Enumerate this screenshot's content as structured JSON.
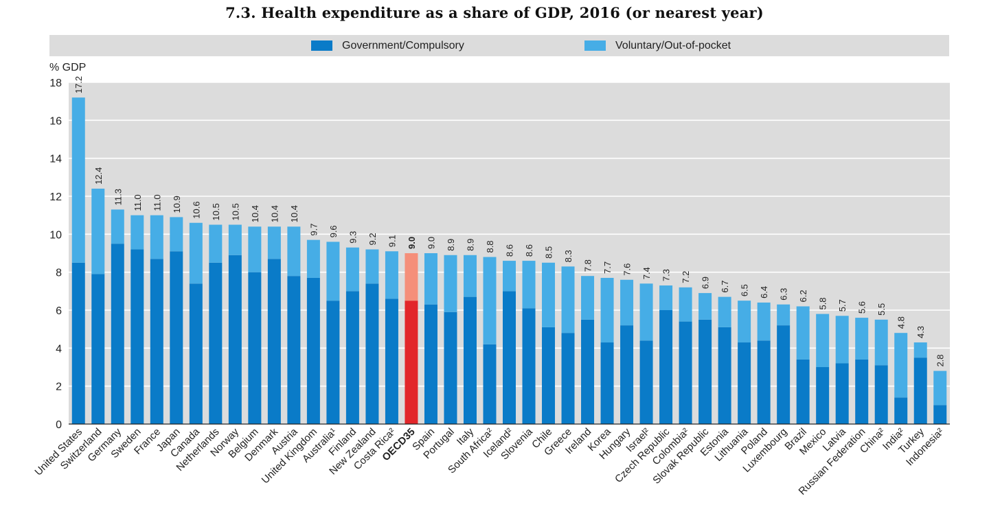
{
  "title": "7.3. Health expenditure as a share of GDP, 2016 (or nearest year)",
  "colors": {
    "gov": "#0a7bc8",
    "vol": "#46ade6",
    "gov_hl": "#e2262a",
    "vol_hl": "#f58f7a",
    "plot_bg": "#dcdcdc",
    "grid": "#ffffff"
  },
  "chart_data": {
    "type": "bar",
    "stacked": true,
    "ylabel": "% GDP",
    "ylim": [
      0,
      18
    ],
    "yticks": [
      0,
      2,
      4,
      6,
      8,
      10,
      12,
      14,
      16,
      18
    ],
    "legend_position": "top",
    "highlight": "OECD35",
    "categories": [
      "United States",
      "Switzerland",
      "Germany",
      "Sweden",
      "France",
      "Japan",
      "Canada",
      "Netherlands",
      "Norway",
      "Belgium",
      "Denmark",
      "Austria",
      "United Kingdom",
      "Australia¹",
      "Finland",
      "New Zealand",
      "Costa Rica²",
      "OECD35",
      "Spain",
      "Portugal",
      "Italy",
      "South Africa²",
      "Iceland²",
      "Slovenia",
      "Chile",
      "Greece",
      "Ireland",
      "Korea",
      "Hungary",
      "Israel²",
      "Czech Republic",
      "Colombia²",
      "Slovak Republic",
      "Estonia",
      "Lithuania",
      "Poland",
      "Luxembourg",
      "Brazil",
      "Mexico",
      "Latvia",
      "Russian Federation",
      "China²",
      "India²",
      "Turkey",
      "Indonesia²"
    ],
    "series": [
      {
        "name": "Government/Compulsory",
        "values": [
          8.5,
          7.9,
          9.5,
          9.2,
          8.7,
          9.1,
          7.4,
          8.5,
          8.9,
          8.0,
          8.7,
          7.8,
          7.7,
          6.5,
          7.0,
          7.4,
          6.6,
          6.5,
          6.3,
          5.9,
          6.7,
          4.2,
          7.0,
          6.1,
          5.1,
          4.8,
          5.5,
          4.3,
          5.2,
          4.4,
          6.0,
          5.4,
          5.5,
          5.1,
          4.3,
          4.4,
          5.2,
          3.4,
          3.0,
          3.2,
          3.4,
          3.1,
          1.4,
          3.5,
          1.0
        ]
      },
      {
        "name": "Voluntary/Out-of-pocket",
        "values": [
          8.7,
          4.5,
          1.8,
          1.8,
          2.3,
          1.8,
          3.2,
          2.0,
          1.6,
          2.4,
          1.7,
          2.6,
          2.0,
          3.1,
          2.3,
          1.8,
          2.5,
          2.5,
          2.7,
          3.0,
          2.2,
          4.6,
          1.6,
          2.5,
          3.4,
          3.5,
          2.3,
          3.4,
          2.4,
          3.0,
          1.3,
          1.8,
          1.4,
          1.6,
          2.2,
          2.0,
          1.1,
          2.8,
          2.8,
          2.5,
          2.2,
          2.4,
          3.4,
          0.8,
          1.8
        ]
      }
    ],
    "totals": [
      "17.2",
      "12.4",
      "11.3",
      "11.0",
      "11.0",
      "10.9",
      "10.6",
      "10.5",
      "10.5",
      "10.4",
      "10.4",
      "10.4",
      "9.7",
      "9.6",
      "9.3",
      "9.2",
      "9.1",
      "9.0",
      "9.0",
      "8.9",
      "8.9",
      "8.8",
      "8.6",
      "8.6",
      "8.5",
      "8.3",
      "7.8",
      "7.7",
      "7.6",
      "7.4",
      "7.3",
      "7.2",
      "6.9",
      "6.7",
      "6.5",
      "6.4",
      "6.3",
      "6.2",
      "5.8",
      "5.7",
      "5.6",
      "5.5",
      "4.8",
      "4.3",
      "2.8"
    ]
  }
}
